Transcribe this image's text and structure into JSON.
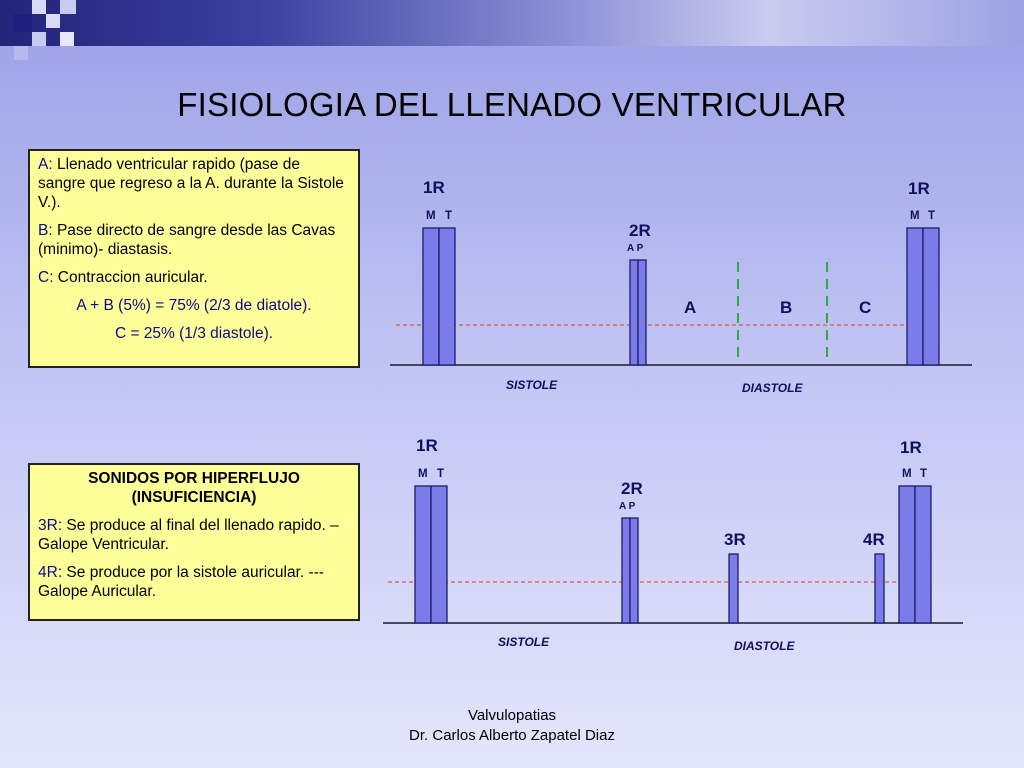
{
  "title": "FISIOLOGIA DEL LLENADO VENTRICULAR",
  "legend_box": {
    "a_key": "A:",
    "a_text": " Llenado ventricular rapido (pase de sangre que regreso a la A. durante la Sistole V.).",
    "b_key": "B:",
    "b_text": " Pase directo de sangre desde las Cavas (minimo)- diastasis.",
    "c_key": "C:",
    "c_text": " Contraccion auricular.",
    "formula1": "A + B (5%) = 75% (2/3 de diatole).",
    "formula2": "C = 25% (1/3 diastole)."
  },
  "hyper_box": {
    "heading": "SONIDOS POR HIPERFLUJO (INSUFICIENCIA)",
    "r3_key": "3R:",
    "r3_text": " Se produce al final del llenado rapido. – Galope Ventricular.",
    "r4_key": "4R:",
    "r4_text": " Se produce por la sistole auricular. --- Galope Auricular."
  },
  "diagram1": {
    "s1": "1R",
    "s1_sub_m": "M",
    "s1_sub_t": "T",
    "s2": "2R",
    "s2_sub": "A P",
    "s1b": "1R",
    "s1b_sub_m": "M",
    "s1b_sub_t": "T",
    "phase_a": "A",
    "phase_b": "B",
    "phase_c": "C",
    "systole": "SISTOLE",
    "diastole": "DIASTOLE"
  },
  "diagram2": {
    "s1": "1R",
    "s1_sub_m": "M",
    "s1_sub_t": "T",
    "s2": "2R",
    "s2_sub": "A P",
    "s3": "3R",
    "s4": "4R",
    "s1b": "1R",
    "s1b_sub_m": "M",
    "s1b_sub_t": "T",
    "systole": "SISTOLE",
    "diastole": "DIASTOLE"
  },
  "footer": {
    "line1": "Valvulopatias",
    "line2": "Dr. Carlos Alberto Zapatel Diaz"
  },
  "colors": {
    "bar_fill": "#7b7bea",
    "bar_stroke": "#1c1c6a",
    "ref_line": "#e0584a",
    "phase_divider": "#2fa84a",
    "label_blue": "#101060"
  }
}
